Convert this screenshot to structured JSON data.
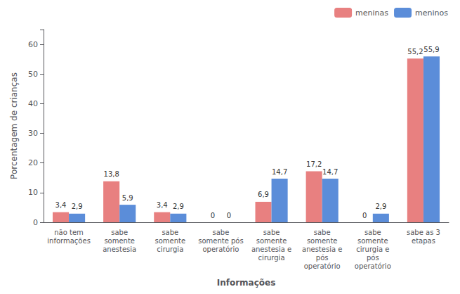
{
  "chart_data": {
    "type": "bar",
    "categories": [
      "não tem\ninformações",
      "sabe\nsomente\nanestesia",
      "sabe\nsomente\ncirurgia",
      "sabe\nsomente pós\noperatório",
      "sabe\nsomente\nanestesia e\ncirurgia",
      "sabe\nsomente\nanestesia e\npós\noperatório",
      "sabe\nsomente\ncirurgia e\npós\noperatório",
      "sabe as 3\netapas"
    ],
    "series": [
      {
        "name": "meninas",
        "color": "#E88080",
        "values": [
          3.4,
          13.8,
          3.4,
          0.0,
          6.9,
          17.2,
          0.0,
          55.2
        ],
        "value_labels": [
          "3,4",
          "13,8",
          "3,4",
          "0",
          "6,9",
          "17,2",
          "0",
          "55,2"
        ]
      },
      {
        "name": "meninos",
        "color": "#5B8DD9",
        "values": [
          2.9,
          5.9,
          2.9,
          0.0,
          14.7,
          14.7,
          2.9,
          55.9
        ],
        "value_labels": [
          "2,9",
          "5,9",
          "2,9",
          "0",
          "14,7",
          "14,7",
          "2,9",
          "55,9"
        ]
      }
    ],
    "xlabel": "Informações",
    "ylabel": "Porcentagem de crianças",
    "ylim": [
      0,
      65
    ],
    "yticks": [
      0,
      10,
      20,
      30,
      40,
      50,
      60
    ],
    "grid": false,
    "legend": "upper right",
    "data_labels": true
  }
}
